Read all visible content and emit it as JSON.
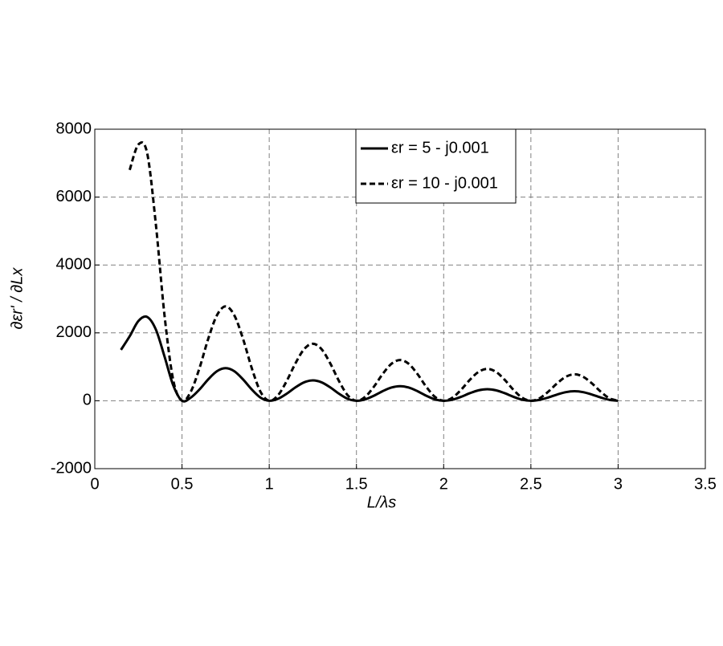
{
  "chart_data": {
    "type": "line",
    "xlabel": "L/λs",
    "ylabel": "∂εr' / ∂Lx",
    "x": [
      0.15,
      0.2,
      0.25,
      0.3,
      0.35,
      0.4,
      0.45,
      0.5,
      0.55,
      0.6,
      0.65,
      0.7,
      0.75,
      0.8,
      0.85,
      0.9,
      0.95,
      1.0,
      1.05,
      1.1,
      1.15,
      1.2,
      1.25,
      1.3,
      1.35,
      1.4,
      1.45,
      1.5,
      1.55,
      1.6,
      1.65,
      1.7,
      1.75,
      1.8,
      1.85,
      1.9,
      1.95,
      2.0,
      2.05,
      2.1,
      2.15,
      2.2,
      2.25,
      2.3,
      2.35,
      2.4,
      2.45,
      2.5,
      2.55,
      2.6,
      2.65,
      2.7,
      2.75,
      2.8,
      2.85,
      2.9,
      2.95,
      3.0
    ],
    "series": [
      {
        "name": "εr = 5 - j0.001",
        "color": "#000000",
        "dash": "solid",
        "values": [
          1500,
          1900,
          2350,
          2470,
          2100,
          1300,
          450,
          0,
          92,
          331,
          629,
          869,
          960,
          869,
          629,
          331,
          92,
          0,
          57,
          207,
          393,
          543,
          600,
          543,
          393,
          207,
          57,
          0,
          41,
          148,
          282,
          389,
          430,
          389,
          282,
          148,
          41,
          0,
          32,
          117,
          223,
          308,
          340,
          308,
          223,
          117,
          32,
          0,
          27,
          97,
          183,
          253,
          280,
          253,
          183,
          97,
          27,
          0
        ]
      },
      {
        "name": "εr = 10 - j0.001",
        "color": "#000000",
        "dash": "dashed",
        "values": [
          null,
          6800,
          7550,
          7300,
          5200,
          2500,
          600,
          0,
          265,
          959,
          1821,
          2516,
          2780,
          2516,
          1821,
          959,
          265,
          0,
          160,
          580,
          1100,
          1520,
          1680,
          1520,
          1100,
          580,
          160,
          0,
          115,
          414,
          786,
          1086,
          1200,
          1086,
          786,
          414,
          115,
          0,
          90,
          324,
          616,
          851,
          940,
          851,
          616,
          324,
          90,
          0,
          74,
          269,
          511,
          706,
          780,
          706,
          511,
          269,
          74,
          0
        ]
      }
    ],
    "xlim": [
      0,
      3.5
    ],
    "xticks": [
      0,
      0.5,
      1,
      1.5,
      2,
      2.5,
      3,
      3.5
    ],
    "ylim": [
      -2000,
      8000
    ],
    "yticks": [
      -2000,
      0,
      2000,
      4000,
      6000,
      8000
    ],
    "grid": true,
    "legend": "upper-right"
  }
}
